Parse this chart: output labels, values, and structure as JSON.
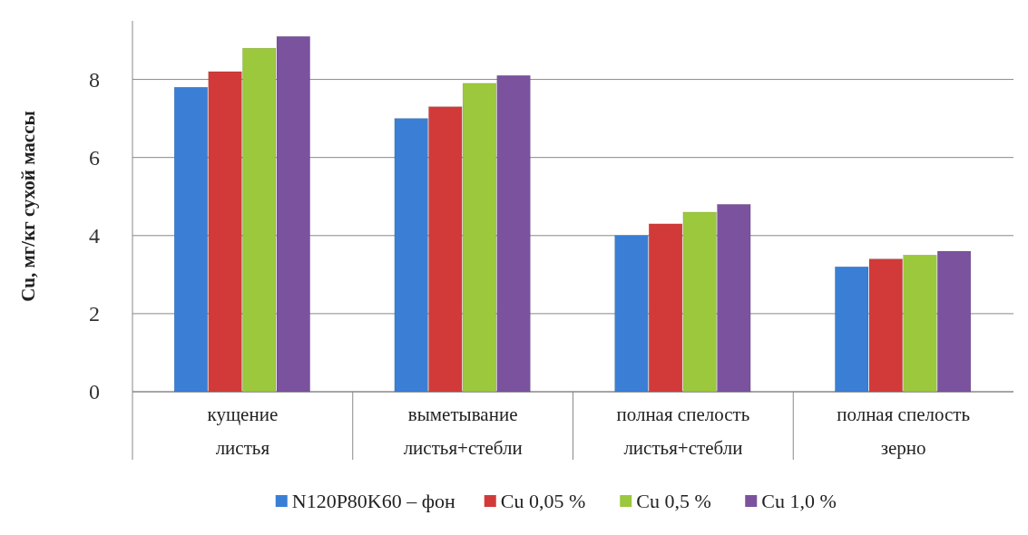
{
  "chart_data": {
    "type": "bar",
    "ylabel": "Cu, мг/кг сухой массы",
    "categories": [
      "кущение\nлистья",
      "выметывание\nлистья+стебли",
      "полная спелость\nлистья+стебли",
      "полная спелость\nзерно"
    ],
    "series": [
      {
        "name": "N120P80K60 – фон",
        "color": "#3a7fd5",
        "values": [
          7.8,
          7.0,
          4.0,
          3.2
        ]
      },
      {
        "name": "Cu 0,05 %",
        "color": "#d23a3a",
        "values": [
          8.2,
          7.3,
          4.3,
          3.4
        ]
      },
      {
        "name": "Cu 0,5 %",
        "color": "#9bc83c",
        "values": [
          8.8,
          7.9,
          4.6,
          3.5
        ]
      },
      {
        "name": "Cu 1,0 %",
        "color": "#7b529e",
        "values": [
          9.1,
          8.1,
          4.8,
          3.6
        ]
      }
    ],
    "ylim": [
      0,
      9.5
    ],
    "yticks": [
      0,
      2,
      4,
      6,
      8
    ],
    "grid": "y",
    "legend": "bottom"
  }
}
